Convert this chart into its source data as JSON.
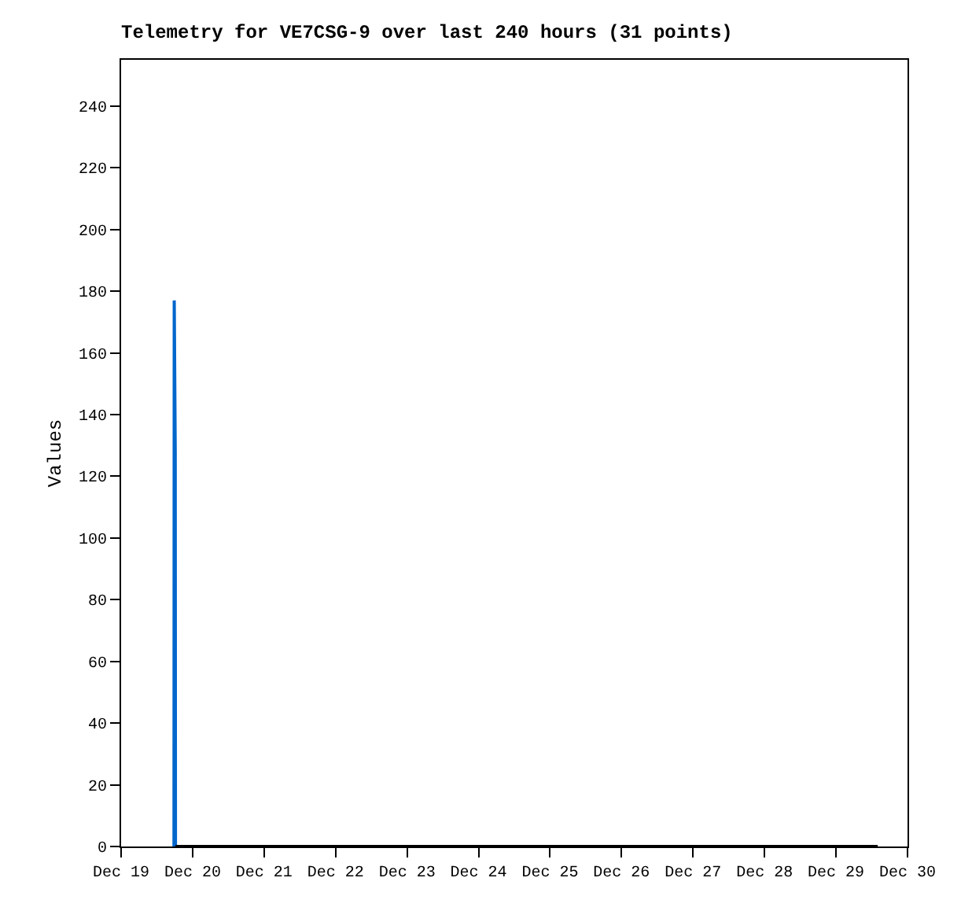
{
  "chart_data": {
    "type": "line",
    "title": "Telemetry for VE7CSG-9 over last 240 hours (31 points)",
    "ylabel": "Values",
    "series": [
      {
        "color": "#0066cc",
        "x": [
          "--12-19T17:45",
          "--12-19T17:50",
          "--12-19T18:10",
          "--12-19T18:15"
        ],
        "values": [
          0,
          177,
          128,
          0
        ]
      },
      {
        "color": "#000000",
        "x": [
          "--12-19T18:15",
          "--12-29T14:00"
        ],
        "values": [
          0,
          0
        ]
      }
    ],
    "xlim": [
      "--12-19",
      "--12-30"
    ],
    "xticks": [
      {
        "value": "--12-19",
        "label": "Dec 19"
      },
      {
        "value": "--12-20",
        "label": "Dec 20"
      },
      {
        "value": "--12-21",
        "label": "Dec 21"
      },
      {
        "value": "--12-22",
        "label": "Dec 22"
      },
      {
        "value": "--12-23",
        "label": "Dec 23"
      },
      {
        "value": "--12-24",
        "label": "Dec 24"
      },
      {
        "value": "--12-25",
        "label": "Dec 25"
      },
      {
        "value": "--12-26",
        "label": "Dec 26"
      },
      {
        "value": "--12-27",
        "label": "Dec 27"
      },
      {
        "value": "--12-28",
        "label": "Dec 28"
      },
      {
        "value": "--12-29",
        "label": "Dec 29"
      },
      {
        "value": "--12-30",
        "label": "Dec 30"
      }
    ],
    "ylim": [
      0,
      255
    ],
    "yticks": [
      0,
      20,
      40,
      60,
      80,
      100,
      120,
      140,
      160,
      180,
      200,
      220,
      240
    ],
    "grid": false,
    "marker": "none",
    "line_style": "solid"
  }
}
